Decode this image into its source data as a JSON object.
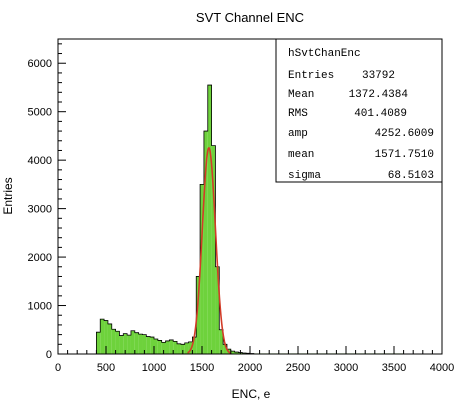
{
  "chart_data": {
    "type": "bar",
    "title": "SVT Channel ENC",
    "xlabel": "ENC, e",
    "ylabel": "Entries",
    "xlim": [
      0,
      4000
    ],
    "ylim": [
      0,
      6500
    ],
    "x_ticks": [
      "0",
      "500",
      "1000",
      "1500",
      "2000",
      "2500",
      "3000",
      "3500",
      "4000"
    ],
    "y_ticks": [
      "0",
      "1000",
      "2000",
      "3000",
      "4000",
      "5000",
      "6000"
    ],
    "colors": {
      "fill": "#6ed23c",
      "outline": "#000000",
      "fit": "#d23c28",
      "frame": "#000000"
    },
    "histogram": {
      "bin_width": 40,
      "bin_starts": [
        400,
        440,
        480,
        520,
        560,
        600,
        640,
        680,
        720,
        760,
        800,
        840,
        880,
        920,
        960,
        1000,
        1040,
        1080,
        1120,
        1160,
        1200,
        1240,
        1280,
        1320,
        1360,
        1400,
        1440,
        1480,
        1520,
        1560,
        1600,
        1640,
        1680,
        1720,
        1760,
        1800,
        1840,
        1880,
        1920,
        1960,
        2000
      ],
      "values": [
        450,
        720,
        690,
        620,
        510,
        470,
        380,
        420,
        390,
        480,
        440,
        410,
        400,
        360,
        350,
        310,
        280,
        240,
        270,
        290,
        260,
        210,
        200,
        230,
        250,
        350,
        1600,
        3500,
        4600,
        5550,
        4300,
        1800,
        500,
        200,
        100,
        60,
        40,
        30,
        20,
        15,
        10
      ],
      "tail_level": 12
    },
    "fit": {
      "name": "gaus",
      "amp": 4252.6009,
      "mean": 1571.751,
      "sigma": 68.5103
    },
    "stats_box": {
      "name": "hSvtChanEnc",
      "rows": [
        {
          "label": "Entries",
          "value": "33792"
        },
        {
          "label": "Mean",
          "value": "1372.4384"
        },
        {
          "label": "RMS",
          "value": "401.4089"
        },
        {
          "label": "amp",
          "value": "4252.6009"
        },
        {
          "label": "mean",
          "value": "1571.7510"
        },
        {
          "label": "sigma",
          "value": "68.5103"
        }
      ]
    }
  }
}
